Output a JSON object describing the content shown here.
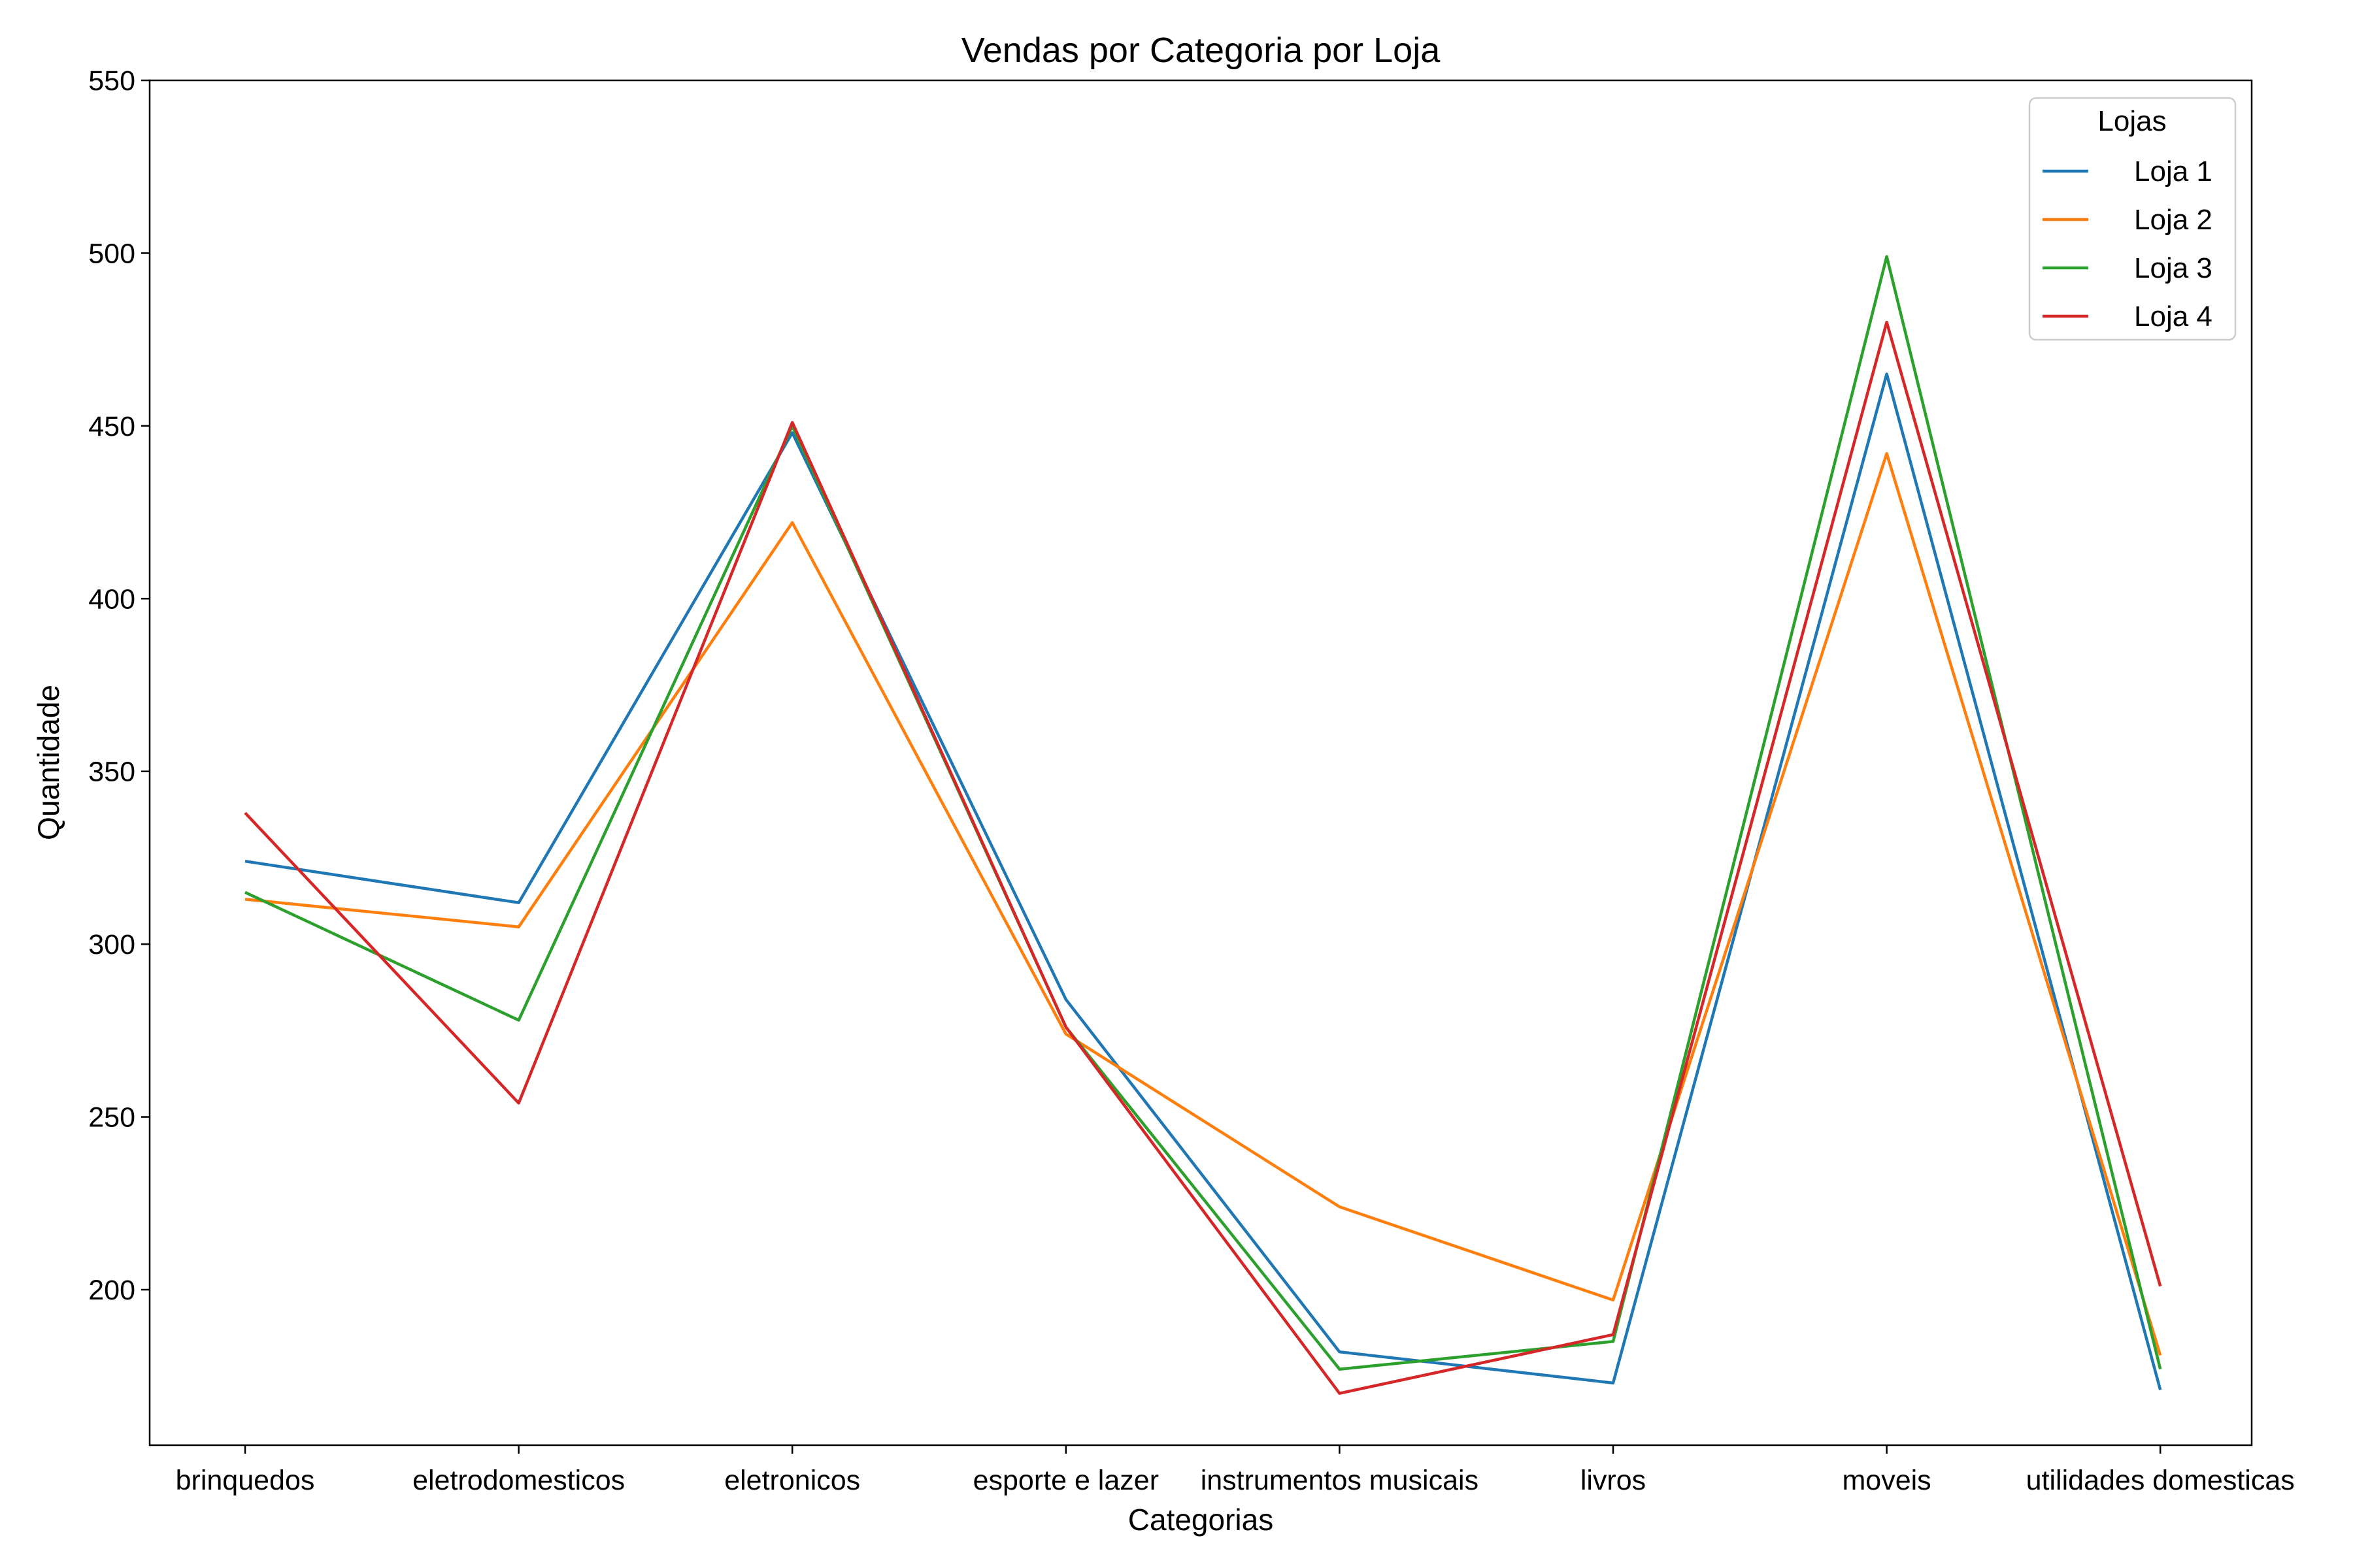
{
  "chart_data": {
    "type": "line",
    "title": "Vendas por Categoria por Loja",
    "xlabel": "Categorias",
    "ylabel": "Quantidade",
    "categories": [
      "brinquedos",
      "eletrodomesticos",
      "eletronicos",
      "esporte e lazer",
      "instrumentos musicais",
      "livros",
      "moveis",
      "utilidades domesticas"
    ],
    "ylim": [
      155,
      550
    ],
    "yticks": [
      200,
      250,
      300,
      350,
      400,
      450,
      500,
      550
    ],
    "grid": false,
    "legend": {
      "title": "Lojas",
      "position": "top-right"
    },
    "series": [
      {
        "name": "Loja 1",
        "color": "#1f77b4",
        "values": [
          324,
          312,
          448,
          284,
          182,
          173,
          465,
          171
        ]
      },
      {
        "name": "Loja 2",
        "color": "#ff7f0e",
        "values": [
          313,
          305,
          422,
          274,
          224,
          197,
          442,
          181
        ]
      },
      {
        "name": "Loja 3",
        "color": "#2ca02c",
        "values": [
          315,
          278,
          450,
          276,
          177,
          185,
          499,
          177
        ]
      },
      {
        "name": "Loja 4",
        "color": "#d62728",
        "values": [
          338,
          254,
          451,
          276,
          170,
          187,
          480,
          201
        ]
      }
    ]
  }
}
